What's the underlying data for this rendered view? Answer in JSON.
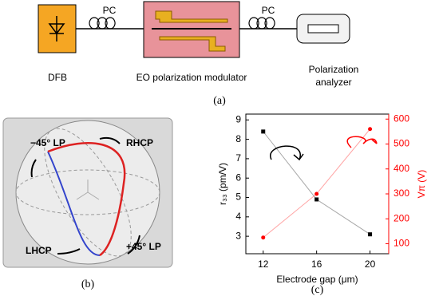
{
  "figure_a": {
    "dfb_label": "DFB",
    "pc_left": "PC",
    "pc_right": "PC",
    "modulator_label": "EO polarization modulator",
    "analyzer_label": [
      "Polarization",
      "analyzer"
    ],
    "caption": "(a)"
  },
  "figure_b": {
    "labels": {
      "lp_minus": "−45° LP",
      "rhcp": "RHCP",
      "lhcp": "LHCP",
      "lp_plus": "+45° LP"
    },
    "caption": "(b)"
  },
  "chart_data": {
    "type": "line",
    "x_label": "Electrode gap (μm)",
    "y_label": "r₃₃ (pm/V)",
    "y2_label": "Vπ (V)",
    "x": [
      12,
      16,
      20
    ],
    "xlim": [
      10.7,
      21.4
    ],
    "xticks": [
      12,
      16,
      20
    ],
    "ylim": [
      2.1,
      9.3
    ],
    "yticks": [
      3,
      4,
      5,
      6,
      7,
      8,
      9
    ],
    "y2lim": [
      60,
      620
    ],
    "y2ticks": [
      100,
      200,
      300,
      400,
      500,
      600
    ],
    "series": [
      {
        "color": "#000000",
        "values": [
          8.4,
          4.9,
          3.1
        ]
      },
      {
        "color": "#ff0000",
        "axis": "y2",
        "values": [
          125,
          300,
          560
        ]
      }
    ],
    "caption": "(c)"
  }
}
